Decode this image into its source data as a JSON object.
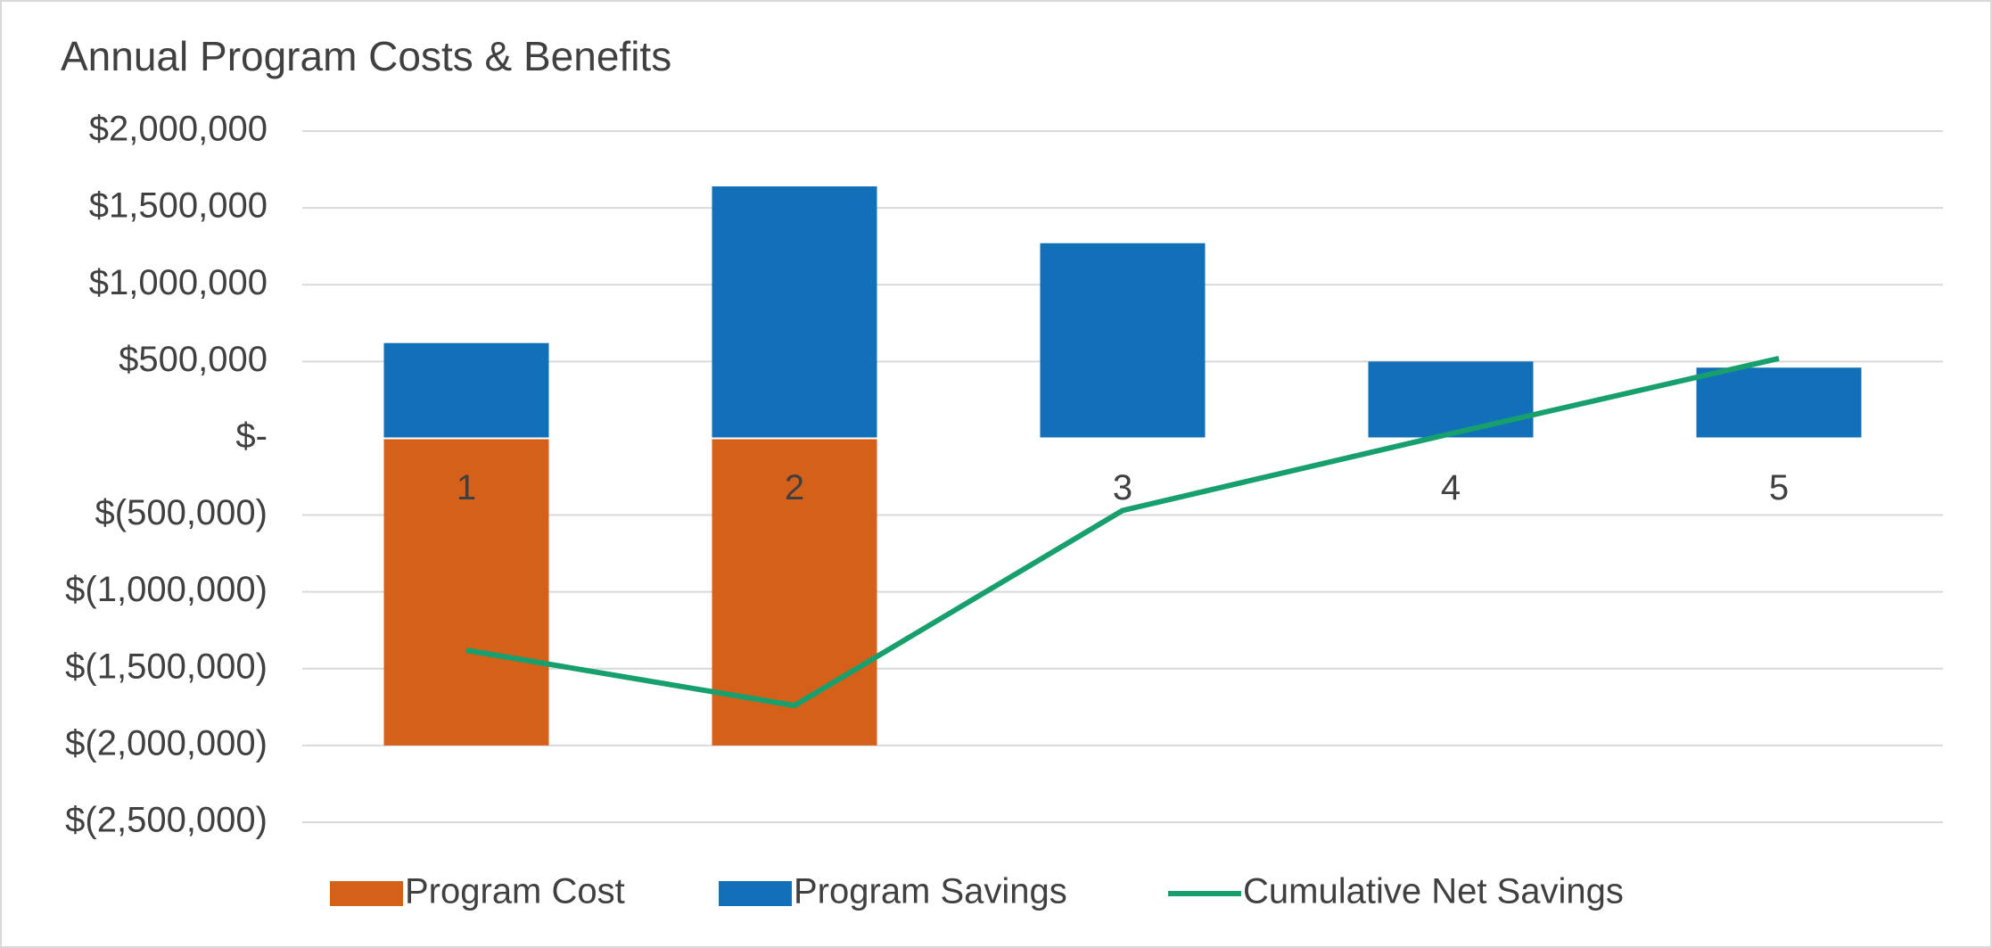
{
  "chart_data": {
    "type": "bar",
    "title": "Annual Program Costs & Benefits",
    "categories": [
      "1",
      "2",
      "3",
      "4",
      "5"
    ],
    "series": [
      {
        "name": "Program Cost",
        "color": "#d4601a",
        "values": [
          -2000000,
          -2000000,
          0,
          0,
          0
        ]
      },
      {
        "name": "Program Savings",
        "color": "#1170b7",
        "values": [
          620000,
          1640000,
          1270000,
          500000,
          460000
        ]
      },
      {
        "name": "Cumulative Net Savings",
        "color": "#17a06e",
        "type": "line",
        "values": [
          -1380000,
          -1740000,
          -470000,
          30000,
          520000
        ]
      }
    ],
    "ylim": [
      -2500000,
      2000000
    ],
    "yticks": [
      {
        "value": -2500000,
        "label": "$(2,500,000)"
      },
      {
        "value": -2000000,
        "label": "$(2,000,000)"
      },
      {
        "value": -1500000,
        "label": "$(1,500,000)"
      },
      {
        "value": -1000000,
        "label": "$(1,000,000)"
      },
      {
        "value": -500000,
        "label": "$(500,000)"
      },
      {
        "value": 0,
        "label": "$-"
      },
      {
        "value": 500000,
        "label": "$500,000"
      },
      {
        "value": 1000000,
        "label": "$1,000,000"
      },
      {
        "value": 1500000,
        "label": "$1,500,000"
      },
      {
        "value": 2000000,
        "label": "$2,000,000"
      }
    ],
    "grid": true,
    "legend": "bottom"
  }
}
